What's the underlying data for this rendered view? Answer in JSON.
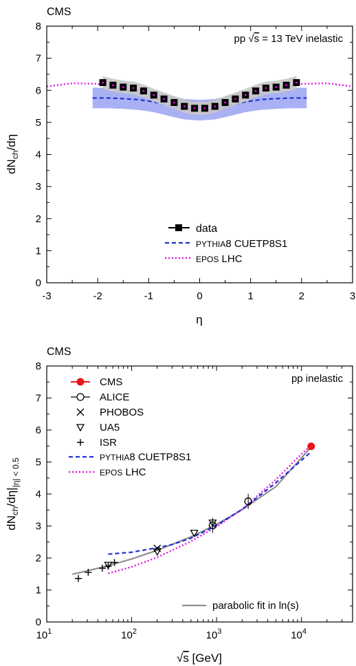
{
  "chart_data": [
    {
      "type": "line",
      "experiment": "CMS",
      "annotation": "pp √s = 13 TeV inelastic",
      "annotation_parts": [
        "pp ",
        "s",
        " = 13 TeV inelastic"
      ],
      "xlabel": "η",
      "ylabel_main": "dN",
      "ylabel_sub": "ch",
      "ylabel_tail": "/dη",
      "xlim": [
        -3,
        3
      ],
      "ylim": [
        0,
        8
      ],
      "xticks": [
        "-3",
        "-2",
        "-1",
        "0",
        "1",
        "2",
        "3"
      ],
      "yticks": [
        "0",
        "1",
        "2",
        "3",
        "4",
        "5",
        "6",
        "7",
        "8"
      ],
      "legend_position": "bottom-right",
      "legend": {
        "data": "data",
        "pythia_a": "PYTHIA",
        "pythia_b": "8 CUETP8S1",
        "epos_a": "EPOS",
        "epos_b": " LHC"
      },
      "colors": {
        "pythia": "#1f2fd6",
        "pythia_band": "#9aa3f2",
        "epos": "#e010e0",
        "syst_band": "#c8c8c8"
      },
      "data": {
        "eta": [
          -1.9,
          -1.7,
          -1.5,
          -1.3,
          -1.1,
          -0.9,
          -0.7,
          -0.5,
          -0.3,
          -0.1,
          0.1,
          0.3,
          0.5,
          0.7,
          0.9,
          1.1,
          1.3,
          1.5,
          1.7,
          1.9
        ],
        "values": [
          6.24,
          6.16,
          6.1,
          6.07,
          5.98,
          5.85,
          5.73,
          5.62,
          5.5,
          5.44,
          5.44,
          5.5,
          5.62,
          5.73,
          5.85,
          5.98,
          6.07,
          6.1,
          6.16,
          6.24
        ],
        "syst": 0.2
      },
      "pythia": {
        "eta": [
          -2.1,
          -1.8,
          -1.5,
          -1.2,
          -0.9,
          -0.6,
          -0.3,
          0,
          0.3,
          0.6,
          0.9,
          1.2,
          1.5,
          1.8,
          2.1
        ],
        "values": [
          5.76,
          5.76,
          5.74,
          5.71,
          5.64,
          5.52,
          5.41,
          5.38,
          5.41,
          5.52,
          5.64,
          5.71,
          5.74,
          5.76,
          5.76
        ],
        "band_half_width": 0.32
      },
      "epos": {
        "eta": [
          -3,
          -2.5,
          -2,
          -1.5,
          -1,
          -0.5,
          0,
          0.5,
          1,
          1.5,
          2,
          2.5,
          3
        ],
        "values": [
          6.12,
          6.22,
          6.2,
          6.08,
          5.86,
          5.58,
          5.42,
          5.58,
          5.86,
          6.08,
          6.2,
          6.22,
          6.12
        ]
      }
    },
    {
      "type": "scatter",
      "experiment": "CMS",
      "annotation": "pp inelastic",
      "xlabel_root": "s",
      "xlabel_tail": " [GeV]",
      "ylabel_main": "dN",
      "ylabel_sub1": "ch",
      "ylabel_mid": "/dη|",
      "ylabel_sub2": "|η| < 0.5",
      "xscale": "log",
      "xlim": [
        10,
        40000
      ],
      "ylim": [
        0,
        8
      ],
      "xticks": [
        {
          "base": "10",
          "exp": "1",
          "value": 10
        },
        {
          "base": "10",
          "exp": "2",
          "value": 100
        },
        {
          "base": "10",
          "exp": "3",
          "value": 1000
        },
        {
          "base": "10",
          "exp": "4",
          "value": 10000
        }
      ],
      "yticks": [
        "0",
        "1",
        "2",
        "3",
        "4",
        "5",
        "6",
        "7",
        "8"
      ],
      "legend_position": "top-left",
      "legend": {
        "cms": "CMS",
        "alice": "ALICE",
        "phobos": "PHOBOS",
        "ua5": "UA5",
        "isr": "ISR",
        "pythia_a": "PYTHIA",
        "pythia_b": "8 CUETP8S1",
        "epos_a": "EPOS",
        "epos_b": " LHC",
        "fit": "parabolic fit in ln(s)"
      },
      "colors": {
        "cms": "#e8141b",
        "pythia": "#1f2fd6",
        "epos": "#e010e0",
        "fit": "#909090"
      },
      "series": [
        {
          "name": "CMS",
          "marker": "filled-circle",
          "points": [
            [
              13000,
              5.49
            ]
          ]
        },
        {
          "name": "ALICE",
          "marker": "open-circle",
          "points": [
            [
              900,
              3.02
            ],
            [
              2360,
              3.77
            ]
          ]
        },
        {
          "name": "PHOBOS",
          "marker": "cross",
          "points": [
            [
              200,
              2.3
            ]
          ]
        },
        {
          "name": "UA5",
          "marker": "triangle-down",
          "points": [
            [
              53,
              1.78
            ],
            [
              200,
              2.2
            ],
            [
              546,
              2.78
            ],
            [
              900,
              3.1
            ]
          ]
        },
        {
          "name": "ISR",
          "marker": "plus",
          "points": [
            [
              23.6,
              1.36
            ],
            [
              30.8,
              1.55
            ],
            [
              45.2,
              1.68
            ],
            [
              53,
              1.74
            ],
            [
              62.8,
              1.86
            ]
          ]
        }
      ],
      "pythia": {
        "x": [
          53,
          100,
          200,
          300,
          500,
          1000,
          2000,
          5000,
          13000
        ],
        "values": [
          2.12,
          2.18,
          2.32,
          2.42,
          2.62,
          3.02,
          3.52,
          4.35,
          5.32
        ]
      },
      "epos": {
        "x": [
          53,
          100,
          200,
          500,
          1000,
          2000,
          5000,
          10000,
          13000
        ],
        "values": [
          1.52,
          1.72,
          2.02,
          2.52,
          2.98,
          3.52,
          4.45,
          5.25,
          5.52
        ]
      },
      "fit": {
        "x": [
          20,
          50,
          100,
          200,
          500,
          1000,
          2000,
          5000,
          13000
        ],
        "values": [
          1.49,
          1.74,
          1.97,
          2.24,
          2.66,
          3.05,
          3.51,
          4.23,
          5.47
        ]
      }
    }
  ]
}
